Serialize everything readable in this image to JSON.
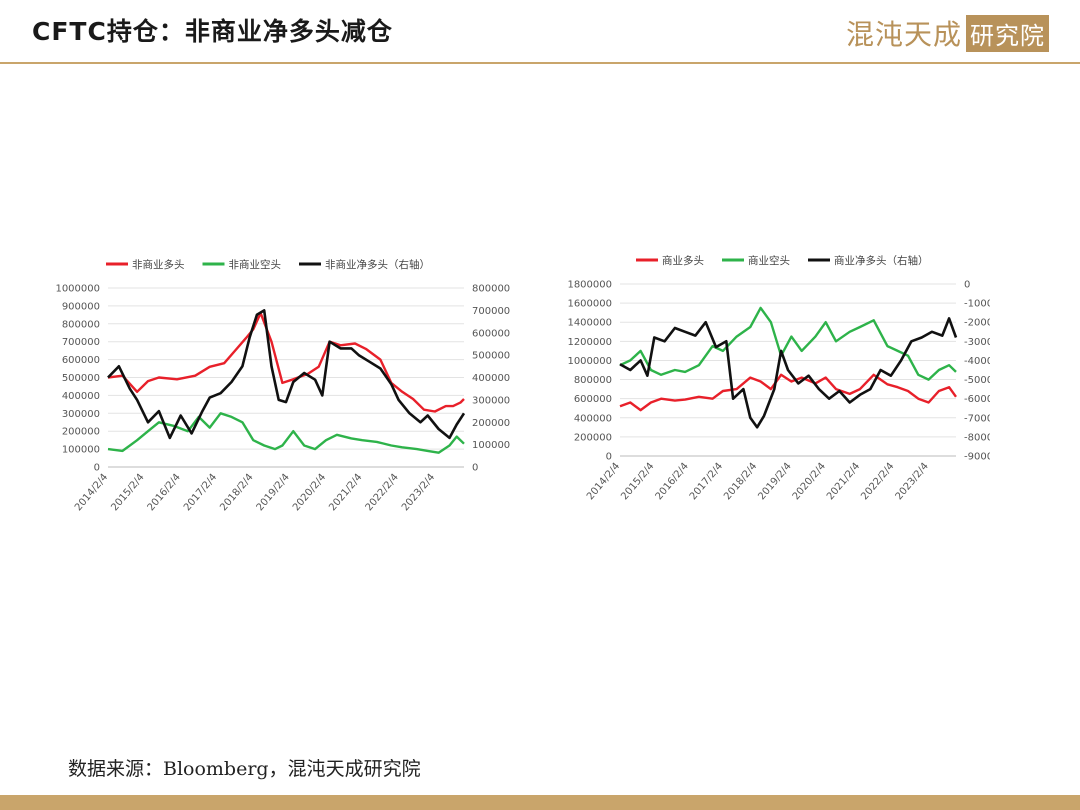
{
  "header": {
    "title": "CFTC持仓：非商业净多头减仓",
    "logo_text": "混沌天成",
    "logo_box_text": "研究院"
  },
  "footer": {
    "source": "数据来源：Bloomberg，混沌天成研究院"
  },
  "colors": {
    "accent_gold": "#c9a56b",
    "series_red": "#e8202a",
    "series_green": "#2eb34a",
    "series_black": "#111111"
  },
  "chart_data": [
    {
      "type": "line",
      "title": "",
      "x_tick_labels": [
        "2014/2/4",
        "2015/2/4",
        "2016/2/4",
        "2017/2/4",
        "2018/2/4",
        "2019/2/4",
        "2020/2/4",
        "2021/2/4",
        "2022/2/4",
        "2023/2/4"
      ],
      "x_range": [
        2014.1,
        2023.9
      ],
      "y_left": {
        "ticks": [
          "1000000",
          "900000",
          "800000",
          "700000",
          "600000",
          "500000",
          "400000",
          "300000",
          "200000",
          "100000",
          "0"
        ],
        "range": [
          0,
          1000000
        ]
      },
      "y_right": {
        "ticks": [
          "800000",
          "700000",
          "600000",
          "500000",
          "400000",
          "300000",
          "200000",
          "100000",
          "0"
        ],
        "range": [
          0,
          800000
        ]
      },
      "grid": true,
      "legend_position": "top",
      "series": [
        {
          "name": "非商业多头",
          "color": "red",
          "axis": "left",
          "x": [
            2014.1,
            2014.5,
            2014.9,
            2015.2,
            2015.5,
            2016.0,
            2016.5,
            2016.9,
            2017.3,
            2017.6,
            2017.9,
            2018.1,
            2018.3,
            2018.6,
            2018.9,
            2019.2,
            2019.6,
            2019.9,
            2020.2,
            2020.5,
            2020.9,
            2021.2,
            2021.6,
            2021.9,
            2022.2,
            2022.5,
            2022.8,
            2023.1,
            2023.4,
            2023.6,
            2023.8,
            2023.9
          ],
          "y": [
            500000,
            510000,
            420000,
            480000,
            500000,
            490000,
            510000,
            560000,
            580000,
            650000,
            720000,
            770000,
            860000,
            700000,
            470000,
            490000,
            520000,
            560000,
            700000,
            680000,
            690000,
            660000,
            600000,
            470000,
            420000,
            380000,
            320000,
            310000,
            340000,
            340000,
            360000,
            380000
          ]
        },
        {
          "name": "非商业空头",
          "color": "green",
          "axis": "left",
          "x": [
            2014.1,
            2014.5,
            2014.9,
            2015.2,
            2015.5,
            2015.9,
            2016.3,
            2016.6,
            2016.9,
            2017.2,
            2017.5,
            2017.8,
            2018.1,
            2018.4,
            2018.7,
            2018.9,
            2019.2,
            2019.5,
            2019.8,
            2020.1,
            2020.4,
            2020.8,
            2021.1,
            2021.5,
            2021.9,
            2022.2,
            2022.6,
            2022.9,
            2023.2,
            2023.5,
            2023.7,
            2023.9
          ],
          "y": [
            100000,
            90000,
            150000,
            200000,
            250000,
            230000,
            200000,
            280000,
            220000,
            300000,
            280000,
            250000,
            150000,
            120000,
            100000,
            120000,
            200000,
            120000,
            100000,
            150000,
            180000,
            160000,
            150000,
            140000,
            120000,
            110000,
            100000,
            90000,
            80000,
            120000,
            170000,
            130000
          ]
        },
        {
          "name": "非商业净多头（右轴）",
          "color": "black",
          "axis": "right",
          "x": [
            2014.1,
            2014.4,
            2014.7,
            2014.9,
            2015.2,
            2015.5,
            2015.8,
            2016.1,
            2016.4,
            2016.7,
            2016.9,
            2017.2,
            2017.5,
            2017.8,
            2018.0,
            2018.2,
            2018.4,
            2018.6,
            2018.8,
            2019.0,
            2019.2,
            2019.5,
            2019.8,
            2020.0,
            2020.2,
            2020.5,
            2020.8,
            2021.0,
            2021.3,
            2021.6,
            2021.9,
            2022.1,
            2022.4,
            2022.7,
            2022.9,
            2023.2,
            2023.5,
            2023.7,
            2023.9
          ],
          "y": [
            400000,
            450000,
            350000,
            300000,
            200000,
            250000,
            130000,
            230000,
            150000,
            250000,
            310000,
            330000,
            380000,
            450000,
            580000,
            680000,
            700000,
            450000,
            300000,
            290000,
            380000,
            420000,
            390000,
            320000,
            560000,
            530000,
            530000,
            500000,
            470000,
            440000,
            370000,
            300000,
            240000,
            200000,
            230000,
            170000,
            130000,
            190000,
            240000
          ]
        }
      ]
    },
    {
      "type": "line",
      "title": "",
      "x_tick_labels": [
        "2014/2/4",
        "2015/2/4",
        "2016/2/4",
        "2017/2/4",
        "2018/2/4",
        "2019/2/4",
        "2020/2/4",
        "2021/2/4",
        "2022/2/4",
        "2023/2/4"
      ],
      "x_range": [
        2014.1,
        2023.9
      ],
      "y_left": {
        "ticks": [
          "1800000",
          "1600000",
          "1400000",
          "1200000",
          "1000000",
          "800000",
          "600000",
          "400000",
          "200000",
          "0"
        ],
        "range": [
          0,
          1800000
        ]
      },
      "y_right": {
        "ticks": [
          "0",
          "-100000",
          "-200000",
          "-300000",
          "-400000",
          "-500000",
          "-600000",
          "-700000",
          "-800000",
          "-900000"
        ],
        "range": [
          -900000,
          0
        ]
      },
      "grid": true,
      "legend_position": "top",
      "series": [
        {
          "name": "商业多头",
          "color": "red",
          "axis": "left",
          "x": [
            2014.1,
            2014.4,
            2014.7,
            2015.0,
            2015.3,
            2015.7,
            2016.0,
            2016.4,
            2016.8,
            2017.1,
            2017.5,
            2017.9,
            2018.2,
            2018.5,
            2018.8,
            2019.1,
            2019.4,
            2019.8,
            2020.1,
            2020.4,
            2020.8,
            2021.1,
            2021.5,
            2021.9,
            2022.2,
            2022.5,
            2022.8,
            2023.1,
            2023.4,
            2023.7,
            2023.9
          ],
          "y": [
            520000,
            560000,
            480000,
            560000,
            600000,
            580000,
            590000,
            620000,
            600000,
            680000,
            700000,
            820000,
            780000,
            700000,
            850000,
            780000,
            820000,
            760000,
            820000,
            700000,
            650000,
            700000,
            850000,
            750000,
            720000,
            680000,
            600000,
            560000,
            680000,
            720000,
            620000
          ]
        },
        {
          "name": "商业空头",
          "color": "green",
          "axis": "left",
          "x": [
            2014.1,
            2014.4,
            2014.7,
            2015.0,
            2015.3,
            2015.7,
            2016.0,
            2016.4,
            2016.8,
            2017.1,
            2017.5,
            2017.9,
            2018.2,
            2018.5,
            2018.8,
            2019.1,
            2019.4,
            2019.8,
            2020.1,
            2020.4,
            2020.8,
            2021.1,
            2021.5,
            2021.9,
            2022.2,
            2022.5,
            2022.8,
            2023.1,
            2023.4,
            2023.7,
            2023.9
          ],
          "y": [
            950000,
            1000000,
            1100000,
            900000,
            850000,
            900000,
            880000,
            950000,
            1150000,
            1100000,
            1250000,
            1350000,
            1550000,
            1400000,
            1050000,
            1250000,
            1100000,
            1250000,
            1400000,
            1200000,
            1300000,
            1350000,
            1420000,
            1150000,
            1100000,
            1050000,
            850000,
            800000,
            900000,
            950000,
            880000
          ]
        },
        {
          "name": "商业净多头（右轴）",
          "color": "black",
          "axis": "right",
          "x": [
            2014.1,
            2014.4,
            2014.7,
            2014.9,
            2015.1,
            2015.4,
            2015.7,
            2016.0,
            2016.3,
            2016.6,
            2016.9,
            2017.2,
            2017.4,
            2017.7,
            2017.9,
            2018.1,
            2018.3,
            2018.6,
            2018.8,
            2019.0,
            2019.3,
            2019.6,
            2019.9,
            2020.2,
            2020.5,
            2020.8,
            2021.1,
            2021.4,
            2021.7,
            2022.0,
            2022.3,
            2022.6,
            2022.9,
            2023.2,
            2023.5,
            2023.7,
            2023.9
          ],
          "y": [
            -420000,
            -450000,
            -400000,
            -480000,
            -280000,
            -300000,
            -230000,
            -250000,
            -270000,
            -200000,
            -330000,
            -300000,
            -600000,
            -550000,
            -700000,
            -750000,
            -690000,
            -550000,
            -350000,
            -450000,
            -520000,
            -480000,
            -550000,
            -600000,
            -560000,
            -620000,
            -580000,
            -550000,
            -450000,
            -480000,
            -400000,
            -300000,
            -280000,
            -250000,
            -270000,
            -180000,
            -280000
          ]
        }
      ]
    }
  ]
}
